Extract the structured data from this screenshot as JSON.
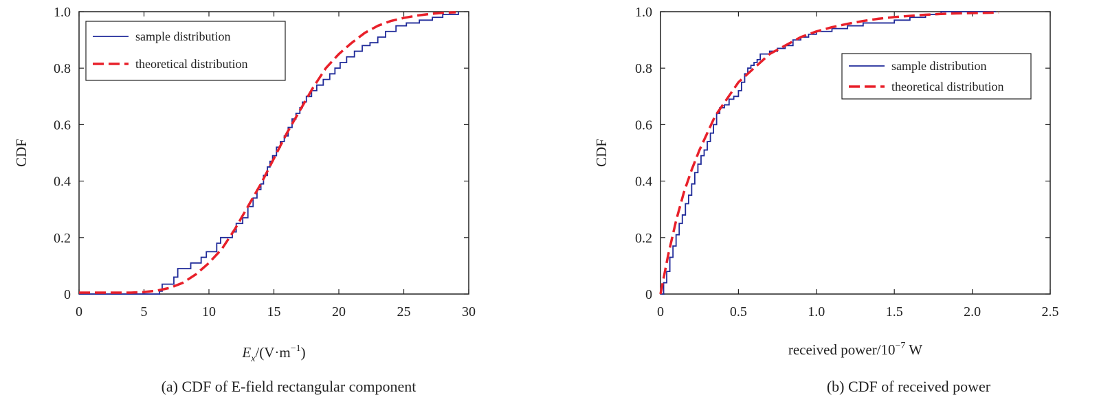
{
  "chart_data": [
    {
      "type": "line",
      "caption": "(a) CDF of E-field rectangular component",
      "ylabel": "CDF",
      "xlabel_main": "E",
      "xlabel_sub": "x",
      "xlabel_unit_start": "/(V·m",
      "xlabel_unit_sup": "−1",
      "xlabel_unit_end": ")",
      "xlim": [
        0,
        30
      ],
      "ylim": [
        0,
        1
      ],
      "xticks": [
        0,
        5,
        10,
        15,
        20,
        25,
        30
      ],
      "xtick_labels": [
        "0",
        "5",
        "10",
        "15",
        "20",
        "25",
        "30"
      ],
      "yticks": [
        0,
        0.2,
        0.4,
        0.6,
        0.8,
        1.0
      ],
      "ytick_labels": [
        "0",
        "0.2",
        "0.4",
        "0.6",
        "0.8",
        "1.0"
      ],
      "legend_position": "top-left",
      "series": [
        {
          "name": "sample distribution",
          "style": "step",
          "color": "#1f2a99",
          "x": [
            0,
            6.2,
            6.4,
            7.3,
            7.6,
            8.0,
            8.6,
            9.4,
            9.8,
            10.3,
            10.6,
            10.9,
            11.3,
            11.8,
            12.1,
            12.6,
            13.0,
            13.4,
            13.7,
            14.0,
            14.2,
            14.5,
            14.7,
            14.9,
            15.2,
            15.5,
            15.8,
            16.1,
            16.4,
            16.7,
            17.0,
            17.2,
            17.5,
            17.9,
            18.3,
            18.8,
            19.3,
            19.7,
            20.1,
            20.6,
            21.2,
            21.8,
            22.4,
            23.0,
            23.6,
            24.4,
            25.2,
            26.2,
            27.2,
            28.0,
            28.6,
            29.2
          ],
          "y": [
            0,
            0.01,
            0.035,
            0.06,
            0.09,
            0.09,
            0.11,
            0.13,
            0.15,
            0.15,
            0.18,
            0.2,
            0.2,
            0.22,
            0.25,
            0.27,
            0.31,
            0.34,
            0.37,
            0.39,
            0.42,
            0.45,
            0.47,
            0.49,
            0.52,
            0.54,
            0.56,
            0.59,
            0.62,
            0.64,
            0.66,
            0.68,
            0.7,
            0.72,
            0.74,
            0.76,
            0.78,
            0.8,
            0.82,
            0.84,
            0.86,
            0.88,
            0.89,
            0.91,
            0.93,
            0.95,
            0.96,
            0.97,
            0.98,
            0.99,
            0.99,
            1.0
          ]
        },
        {
          "name": "theoretical distribution",
          "style": "dashed",
          "color": "#e8202a",
          "x": [
            0,
            2,
            4,
            5,
            6,
            7,
            8,
            9,
            10,
            11,
            12,
            13,
            14,
            15,
            16,
            17,
            18,
            19,
            20,
            21,
            22,
            23,
            24,
            25,
            26,
            27,
            28,
            29
          ],
          "y": [
            0.005,
            0.005,
            0.005,
            0.007,
            0.012,
            0.022,
            0.04,
            0.07,
            0.11,
            0.16,
            0.23,
            0.31,
            0.39,
            0.48,
            0.57,
            0.65,
            0.73,
            0.8,
            0.85,
            0.89,
            0.925,
            0.95,
            0.967,
            0.978,
            0.986,
            0.992,
            0.996,
            0.998
          ]
        }
      ]
    },
    {
      "type": "line",
      "caption": "(b) CDF of received power",
      "ylabel": "CDF",
      "xlabel_main": "received power/10",
      "xlabel_sup": "−7",
      "xlabel_end": " W",
      "xlim": [
        0,
        2.5
      ],
      "ylim": [
        0,
        1
      ],
      "xticks": [
        0,
        0.5,
        1.0,
        1.5,
        2.0,
        2.5
      ],
      "xtick_labels": [
        "0",
        "0.5",
        "1.0",
        "1.5",
        "2.0",
        "2.5"
      ],
      "yticks": [
        0,
        0.2,
        0.4,
        0.6,
        0.8,
        1.0
      ],
      "ytick_labels": [
        "0",
        "0.2",
        "0.4",
        "0.6",
        "0.8",
        "1.0"
      ],
      "legend_position": "right",
      "series": [
        {
          "name": "sample distribution",
          "style": "step",
          "color": "#1f2a99",
          "x": [
            0,
            0.02,
            0.04,
            0.06,
            0.08,
            0.1,
            0.12,
            0.14,
            0.16,
            0.18,
            0.2,
            0.22,
            0.24,
            0.26,
            0.28,
            0.3,
            0.32,
            0.34,
            0.36,
            0.38,
            0.41,
            0.44,
            0.47,
            0.5,
            0.52,
            0.54,
            0.56,
            0.58,
            0.6,
            0.62,
            0.64,
            0.66,
            0.7,
            0.75,
            0.8,
            0.85,
            0.9,
            0.95,
            1.0,
            1.05,
            1.1,
            1.2,
            1.3,
            1.4,
            1.5,
            1.6,
            1.7,
            1.8,
            2.0,
            2.15
          ],
          "y": [
            0,
            0.04,
            0.08,
            0.13,
            0.17,
            0.21,
            0.25,
            0.28,
            0.32,
            0.35,
            0.39,
            0.43,
            0.46,
            0.49,
            0.51,
            0.54,
            0.57,
            0.6,
            0.64,
            0.66,
            0.67,
            0.69,
            0.7,
            0.72,
            0.75,
            0.78,
            0.8,
            0.81,
            0.82,
            0.83,
            0.85,
            0.85,
            0.86,
            0.87,
            0.88,
            0.9,
            0.91,
            0.92,
            0.93,
            0.93,
            0.94,
            0.95,
            0.96,
            0.96,
            0.97,
            0.98,
            0.99,
            1.0,
            1.0,
            1.0
          ]
        },
        {
          "name": "theoretical distribution",
          "style": "dashed",
          "color": "#e8202a",
          "x": [
            0,
            0.05,
            0.1,
            0.15,
            0.2,
            0.25,
            0.3,
            0.35,
            0.4,
            0.45,
            0.5,
            0.6,
            0.7,
            0.8,
            0.9,
            1.0,
            1.1,
            1.2,
            1.3,
            1.4,
            1.5,
            1.6,
            1.7,
            1.8,
            1.9,
            2.0,
            2.1,
            2.17
          ],
          "y": [
            0,
            0.14,
            0.26,
            0.36,
            0.44,
            0.51,
            0.57,
            0.63,
            0.67,
            0.71,
            0.75,
            0.8,
            0.85,
            0.88,
            0.91,
            0.93,
            0.945,
            0.957,
            0.967,
            0.975,
            0.981,
            0.985,
            0.989,
            0.992,
            0.994,
            0.995,
            0.996,
            0.997
          ]
        }
      ]
    }
  ]
}
